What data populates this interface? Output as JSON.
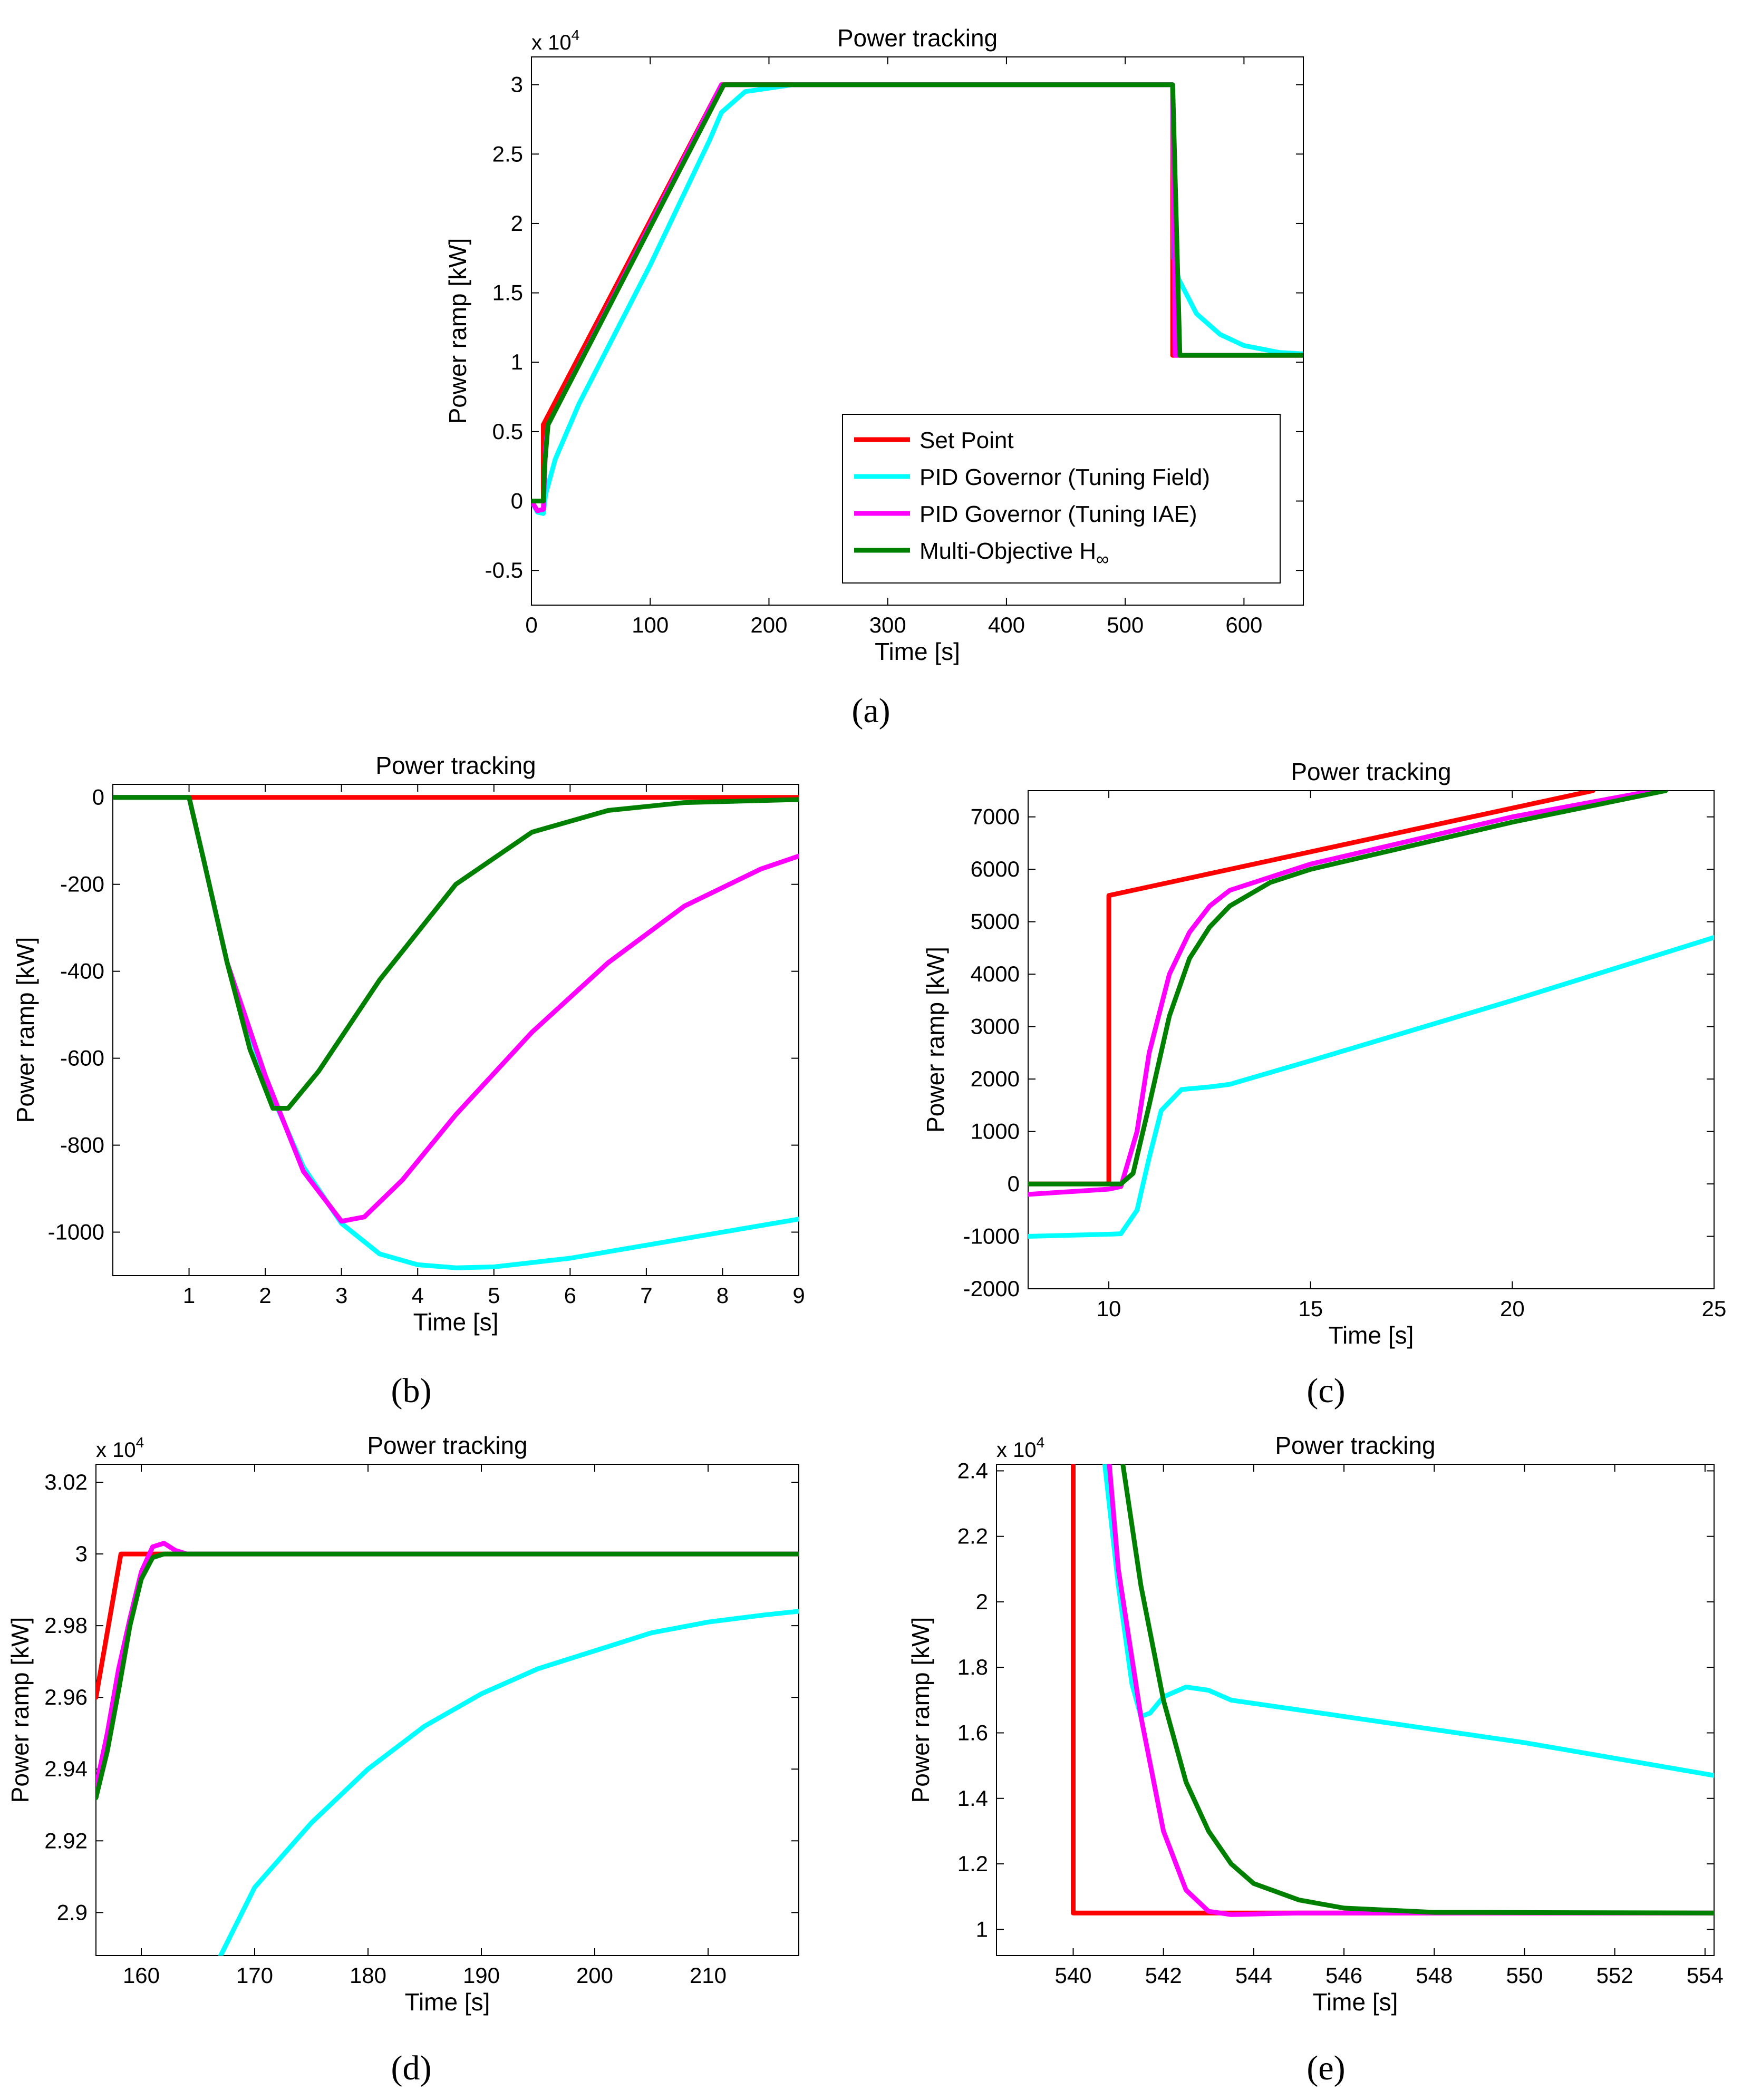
{
  "series_meta": [
    {
      "key": "set_point",
      "name": "Set Point",
      "color": "#ff0000"
    },
    {
      "key": "pid_field",
      "name": "PID Governor (Tuning Field)",
      "color": "#00ffff"
    },
    {
      "key": "pid_iae",
      "name": "PID Governor (Tuning IAE)",
      "color": "#ff00ff"
    },
    {
      "key": "mo_hinf",
      "name": "Multi-Objective H",
      "color": "#008000"
    }
  ],
  "legend_sub": "∞",
  "chart_data": [
    {
      "id": "a",
      "type": "line",
      "caption": "(a)",
      "title": "Power tracking",
      "xlabel": "Time [s]",
      "ylabel": "Power ramp [kW]",
      "multiplier": "x 10",
      "multiplier_exp": "4",
      "xlim": [
        0,
        650
      ],
      "ylim": [
        -0.75,
        3.2
      ],
      "xticks": [
        0,
        100,
        200,
        300,
        400,
        500,
        600
      ],
      "xtick_labels": [
        "0",
        "100",
        "200",
        "300",
        "400",
        "500",
        "600"
      ],
      "yticks": [
        -0.5,
        0,
        0.5,
        1,
        1.5,
        2,
        2.5,
        3
      ],
      "ytick_labels": [
        "-0.5",
        "0",
        "0.5",
        "1",
        "1.5",
        "2",
        "2.5",
        "3"
      ],
      "legend": true,
      "series": {
        "set_point": [
          [
            0,
            0
          ],
          [
            10,
            0
          ],
          [
            10,
            0.55
          ],
          [
            160,
            3.0
          ],
          [
            540,
            3.0
          ],
          [
            540,
            1.05
          ],
          [
            650,
            1.05
          ]
        ],
        "pid_field": [
          [
            0,
            0
          ],
          [
            5,
            -0.08
          ],
          [
            10,
            -0.09
          ],
          [
            12,
            0.05
          ],
          [
            20,
            0.3
          ],
          [
            40,
            0.7
          ],
          [
            100,
            1.7
          ],
          [
            150,
            2.6
          ],
          [
            160,
            2.8
          ],
          [
            180,
            2.95
          ],
          [
            220,
            3.0
          ],
          [
            540,
            3.0
          ],
          [
            541,
            1.75
          ],
          [
            545,
            1.6
          ],
          [
            560,
            1.35
          ],
          [
            580,
            1.2
          ],
          [
            600,
            1.12
          ],
          [
            630,
            1.07
          ],
          [
            650,
            1.06
          ]
        ],
        "pid_iae": [
          [
            0,
            0
          ],
          [
            5,
            -0.07
          ],
          [
            10,
            -0.06
          ],
          [
            12,
            0.4
          ],
          [
            14,
            0.55
          ],
          [
            160,
            3.0
          ],
          [
            540,
            3.0
          ],
          [
            542,
            1.05
          ],
          [
            650,
            1.05
          ]
        ],
        "mo_hinf": [
          [
            0,
            0
          ],
          [
            10,
            0
          ],
          [
            11,
            0.25
          ],
          [
            14,
            0.55
          ],
          [
            162,
            3.0
          ],
          [
            540,
            3.0
          ],
          [
            546,
            1.05
          ],
          [
            650,
            1.05
          ]
        ]
      }
    },
    {
      "id": "b",
      "type": "line",
      "caption": "(b)",
      "title": "Power tracking",
      "xlabel": "Time [s]",
      "ylabel": "Power ramp [kW]",
      "multiplier": "",
      "multiplier_exp": "",
      "xlim": [
        0,
        9
      ],
      "ylim": [
        -1100,
        30
      ],
      "xticks": [
        1,
        2,
        3,
        4,
        5,
        6,
        7,
        8,
        9
      ],
      "xtick_labels": [
        "1",
        "2",
        "3",
        "4",
        "5",
        "6",
        "7",
        "8",
        "9"
      ],
      "yticks": [
        -1000,
        -800,
        -600,
        -400,
        -200,
        0
      ],
      "ytick_labels": [
        "-1000",
        "-800",
        "-600",
        "-400",
        "-200",
        "0"
      ],
      "legend": false,
      "series": {
        "set_point": [
          [
            0,
            0
          ],
          [
            9,
            0
          ]
        ],
        "pid_field": [
          [
            0,
            0
          ],
          [
            1,
            0
          ],
          [
            1.2,
            -150
          ],
          [
            1.5,
            -380
          ],
          [
            2,
            -650
          ],
          [
            2.5,
            -850
          ],
          [
            3,
            -980
          ],
          [
            3.5,
            -1050
          ],
          [
            4,
            -1075
          ],
          [
            4.5,
            -1082
          ],
          [
            5,
            -1080
          ],
          [
            6,
            -1060
          ],
          [
            7,
            -1030
          ],
          [
            8,
            -1000
          ],
          [
            9,
            -970
          ]
        ],
        "pid_iae": [
          [
            0,
            0
          ],
          [
            1,
            0
          ],
          [
            1.2,
            -150
          ],
          [
            1.5,
            -380
          ],
          [
            2,
            -640
          ],
          [
            2.5,
            -860
          ],
          [
            3,
            -975
          ],
          [
            3.3,
            -965
          ],
          [
            3.8,
            -880
          ],
          [
            4.5,
            -730
          ],
          [
            5.5,
            -540
          ],
          [
            6.5,
            -380
          ],
          [
            7.5,
            -250
          ],
          [
            8.5,
            -165
          ],
          [
            9,
            -135
          ]
        ],
        "mo_hinf": [
          [
            0,
            0
          ],
          [
            1,
            0
          ],
          [
            1.2,
            -150
          ],
          [
            1.5,
            -380
          ],
          [
            1.8,
            -580
          ],
          [
            2.1,
            -715
          ],
          [
            2.3,
            -715
          ],
          [
            2.7,
            -630
          ],
          [
            3.5,
            -420
          ],
          [
            4.5,
            -200
          ],
          [
            5.5,
            -80
          ],
          [
            6.5,
            -30
          ],
          [
            7.5,
            -12
          ],
          [
            9,
            -5
          ]
        ]
      }
    },
    {
      "id": "c",
      "type": "line",
      "caption": "(c)",
      "title": "Power tracking",
      "xlabel": "Time [s]",
      "ylabel": "Power ramp [kW]",
      "multiplier": "",
      "multiplier_exp": "",
      "xlim": [
        8,
        25
      ],
      "ylim": [
        -2000,
        7500
      ],
      "xticks": [
        10,
        15,
        20,
        25
      ],
      "xtick_labels": [
        "10",
        "15",
        "20",
        "25"
      ],
      "yticks": [
        -2000,
        -1000,
        0,
        1000,
        2000,
        3000,
        4000,
        5000,
        6000,
        7000
      ],
      "ytick_labels": [
        "-2000",
        "-1000",
        "0",
        "1000",
        "2000",
        "3000",
        "4000",
        "5000",
        "6000",
        "7000"
      ],
      "legend": false,
      "series": {
        "set_point": [
          [
            8,
            0
          ],
          [
            10,
            0
          ],
          [
            10,
            5500
          ],
          [
            22,
            7500
          ]
        ],
        "pid_field": [
          [
            8,
            -1000
          ],
          [
            10,
            -960
          ],
          [
            10.3,
            -950
          ],
          [
            10.7,
            -500
          ],
          [
            11,
            500
          ],
          [
            11.3,
            1400
          ],
          [
            11.8,
            1800
          ],
          [
            12.5,
            1850
          ],
          [
            13,
            1900
          ],
          [
            15,
            2350
          ],
          [
            20,
            3500
          ],
          [
            25,
            4700
          ]
        ],
        "pid_iae": [
          [
            8,
            -200
          ],
          [
            10,
            -100
          ],
          [
            10.3,
            -50
          ],
          [
            10.7,
            1000
          ],
          [
            11,
            2500
          ],
          [
            11.5,
            4000
          ],
          [
            12,
            4800
          ],
          [
            12.5,
            5300
          ],
          [
            13,
            5600
          ],
          [
            14,
            5850
          ],
          [
            15,
            6100
          ],
          [
            20,
            7000
          ],
          [
            23.5,
            7500
          ]
        ],
        "mo_hinf": [
          [
            8,
            0
          ],
          [
            10.3,
            0
          ],
          [
            10.6,
            200
          ],
          [
            11,
            1500
          ],
          [
            11.5,
            3200
          ],
          [
            12,
            4300
          ],
          [
            12.5,
            4900
          ],
          [
            13,
            5300
          ],
          [
            14,
            5750
          ],
          [
            15,
            6000
          ],
          [
            20,
            6900
          ],
          [
            23.8,
            7500
          ]
        ]
      }
    },
    {
      "id": "d",
      "type": "line",
      "caption": "(d)",
      "title": "Power tracking",
      "xlabel": "Time [s]",
      "ylabel": "Power ramp [kW]",
      "multiplier": "x 10",
      "multiplier_exp": "4",
      "xlim": [
        156,
        218
      ],
      "ylim": [
        2.888,
        3.025
      ],
      "xticks": [
        160,
        170,
        180,
        190,
        200,
        210
      ],
      "xtick_labels": [
        "160",
        "170",
        "180",
        "190",
        "200",
        "210"
      ],
      "yticks": [
        2.9,
        2.92,
        2.94,
        2.96,
        2.98,
        3.0,
        3.02
      ],
      "ytick_labels": [
        "2.9",
        "2.92",
        "2.94",
        "2.96",
        "2.98",
        "3",
        "3.02"
      ],
      "legend": false,
      "series": {
        "set_point": [
          [
            156,
            2.96
          ],
          [
            158.2,
            3.0
          ],
          [
            218,
            3.0
          ]
        ],
        "pid_field": [
          [
            167,
            2.888
          ],
          [
            170,
            2.907
          ],
          [
            175,
            2.925
          ],
          [
            180,
            2.94
          ],
          [
            185,
            2.952
          ],
          [
            190,
            2.961
          ],
          [
            195,
            2.968
          ],
          [
            200,
            2.973
          ],
          [
            205,
            2.978
          ],
          [
            210,
            2.981
          ],
          [
            215,
            2.983
          ],
          [
            218,
            2.984
          ]
        ],
        "pid_iae": [
          [
            156,
            2.935
          ],
          [
            157,
            2.95
          ],
          [
            158,
            2.968
          ],
          [
            159,
            2.982
          ],
          [
            160,
            2.995
          ],
          [
            161,
            3.002
          ],
          [
            162,
            3.003
          ],
          [
            163,
            3.001
          ],
          [
            164,
            3.0
          ],
          [
            218,
            3.0
          ]
        ],
        "mo_hinf": [
          [
            156,
            2.932
          ],
          [
            157,
            2.945
          ],
          [
            158,
            2.962
          ],
          [
            159,
            2.98
          ],
          [
            160,
            2.993
          ],
          [
            161,
            2.999
          ],
          [
            162,
            3.0
          ],
          [
            218,
            3.0
          ]
        ]
      }
    },
    {
      "id": "e",
      "type": "line",
      "caption": "(e)",
      "title": "Power tracking",
      "xlabel": "Time [s]",
      "ylabel": "Power ramp [kW]",
      "multiplier": "x 10",
      "multiplier_exp": "4",
      "xlim": [
        538.3,
        554.2
      ],
      "ylim": [
        0.92,
        2.42
      ],
      "xticks": [
        540,
        542,
        544,
        546,
        548,
        550,
        552,
        554
      ],
      "xtick_labels": [
        "540",
        "542",
        "544",
        "546",
        "548",
        "550",
        "552",
        "554"
      ],
      "yticks": [
        1.0,
        1.2,
        1.4,
        1.6,
        1.8,
        2.0,
        2.2,
        2.4
      ],
      "ytick_labels": [
        "1",
        "1.2",
        "1.4",
        "1.6",
        "1.8",
        "2",
        "2.2",
        "2.4"
      ],
      "legend": false,
      "series": {
        "set_point": [
          [
            540,
            2.42
          ],
          [
            540,
            1.05
          ],
          [
            554.2,
            1.05
          ]
        ],
        "pid_field": [
          [
            540.7,
            2.42
          ],
          [
            541,
            2.05
          ],
          [
            541.3,
            1.75
          ],
          [
            541.5,
            1.65
          ],
          [
            541.7,
            1.66
          ],
          [
            542,
            1.71
          ],
          [
            542.5,
            1.74
          ],
          [
            543,
            1.73
          ],
          [
            543.5,
            1.7
          ],
          [
            546,
            1.65
          ],
          [
            550,
            1.57
          ],
          [
            554.2,
            1.47
          ]
        ],
        "pid_iae": [
          [
            540.8,
            2.42
          ],
          [
            541,
            2.1
          ],
          [
            541.5,
            1.65
          ],
          [
            542,
            1.3
          ],
          [
            542.5,
            1.12
          ],
          [
            543,
            1.055
          ],
          [
            543.5,
            1.045
          ],
          [
            545,
            1.05
          ],
          [
            554.2,
            1.05
          ]
        ],
        "mo_hinf": [
          [
            541.1,
            2.42
          ],
          [
            541.5,
            2.05
          ],
          [
            542,
            1.7
          ],
          [
            542.5,
            1.45
          ],
          [
            543,
            1.3
          ],
          [
            543.5,
            1.2
          ],
          [
            544,
            1.14
          ],
          [
            545,
            1.09
          ],
          [
            546,
            1.065
          ],
          [
            548,
            1.052
          ],
          [
            554.2,
            1.05
          ]
        ]
      }
    }
  ]
}
